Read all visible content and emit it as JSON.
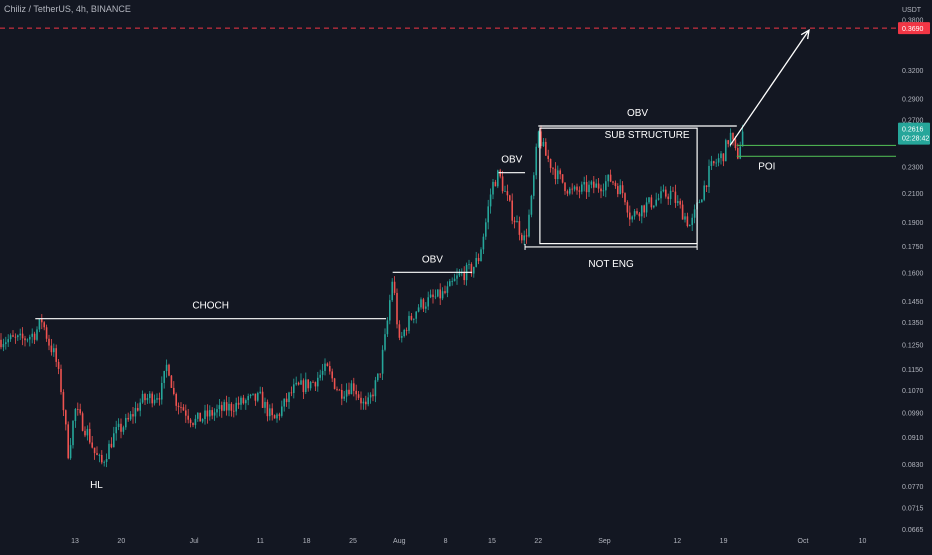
{
  "header": {
    "symbol": "Chiliz / TetherUS",
    "sep1": ", ",
    "interval": "4h",
    "sep2": ", ",
    "exchange": "BINANCE"
  },
  "price_scale": {
    "currency": "USDT",
    "current_price": "0.2616",
    "countdown": "02:28:42",
    "target_price": "0.3690"
  },
  "colors": {
    "background": "#131722",
    "up": "#26a69a",
    "down": "#ef5350",
    "drawing": "#ffffff",
    "poi": "#4caf50",
    "target_line": "#f23645",
    "axis_text": "#b2b5be"
  },
  "chart_data": {
    "type": "candlestick",
    "y_scale": "log",
    "y_ticks": [
      "0.3800",
      "0.3690",
      "0.3200",
      "0.2900",
      "0.2700",
      "0.2616",
      "0.2300",
      "0.2100",
      "0.1900",
      "0.1750",
      "0.1600",
      "0.1450",
      "0.1350",
      "0.1250",
      "0.1150",
      "0.1070",
      "0.0990",
      "0.0910",
      "0.0830",
      "0.0770",
      "0.0715",
      "0.0665"
    ],
    "x_ticks": [
      "13",
      "20",
      "Jul",
      "11",
      "18",
      "25",
      "Aug",
      "8",
      "15",
      "22",
      "Sep",
      "12",
      "19",
      "Oct",
      "10"
    ],
    "ohlc_close_path": [
      {
        "t": "Jun 05",
        "p": 0.127
      },
      {
        "t": "Jun 07",
        "p": 0.13
      },
      {
        "t": "Jun 08",
        "p": 0.136
      },
      {
        "t": "Jun 09",
        "p": 0.126
      },
      {
        "t": "Jun 10",
        "p": 0.12
      },
      {
        "t": "Jun 11",
        "p": 0.106
      },
      {
        "t": "Jun 12",
        "p": 0.086
      },
      {
        "t": "Jun 13",
        "p": 0.1
      },
      {
        "t": "Jun 15",
        "p": 0.092
      },
      {
        "t": "Jun 16",
        "p": 0.086
      },
      {
        "t": "Jun 17",
        "p": 0.083
      },
      {
        "t": "Jun 19",
        "p": 0.092
      },
      {
        "t": "Jun 21",
        "p": 0.096
      },
      {
        "t": "Jun 23",
        "p": 0.103
      },
      {
        "t": "Jun 26",
        "p": 0.106
      },
      {
        "t": "Jun 27",
        "p": 0.118
      },
      {
        "t": "Jun 28",
        "p": 0.104
      },
      {
        "t": "Jul 01",
        "p": 0.096
      },
      {
        "t": "Jul 04",
        "p": 0.099
      },
      {
        "t": "Jul 09",
        "p": 0.103
      },
      {
        "t": "Jul 11",
        "p": 0.104
      },
      {
        "t": "Jul 13",
        "p": 0.096
      },
      {
        "t": "Jul 16",
        "p": 0.107
      },
      {
        "t": "Jul 19",
        "p": 0.11
      },
      {
        "t": "Jul 21",
        "p": 0.115
      },
      {
        "t": "Jul 23",
        "p": 0.106
      },
      {
        "t": "Jul 25",
        "p": 0.109
      },
      {
        "t": "Jul 27",
        "p": 0.1
      },
      {
        "t": "Jul 29",
        "p": 0.113
      },
      {
        "t": "Jul 30",
        "p": 0.13
      },
      {
        "t": "Jul 31",
        "p": 0.158
      },
      {
        "t": "Aug 01",
        "p": 0.125
      },
      {
        "t": "Aug 02",
        "p": 0.133
      },
      {
        "t": "Aug 04",
        "p": 0.143
      },
      {
        "t": "Aug 06",
        "p": 0.146
      },
      {
        "t": "Aug 08",
        "p": 0.149
      },
      {
        "t": "Aug 10",
        "p": 0.158
      },
      {
        "t": "Aug 12",
        "p": 0.162
      },
      {
        "t": "Aug 13",
        "p": 0.168
      },
      {
        "t": "Aug 14",
        "p": 0.188
      },
      {
        "t": "Aug 15",
        "p": 0.215
      },
      {
        "t": "Aug 16",
        "p": 0.224
      },
      {
        "t": "Aug 18",
        "p": 0.196
      },
      {
        "t": "Aug 20",
        "p": 0.178
      },
      {
        "t": "Aug 21",
        "p": 0.205
      },
      {
        "t": "Aug 22",
        "p": 0.258
      },
      {
        "t": "Aug 23",
        "p": 0.24
      },
      {
        "t": "Aug 25",
        "p": 0.222
      },
      {
        "t": "Aug 27",
        "p": 0.21
      },
      {
        "t": "Aug 29",
        "p": 0.213
      },
      {
        "t": "Aug 31",
        "p": 0.215
      },
      {
        "t": "Sep 02",
        "p": 0.22
      },
      {
        "t": "Sep 04",
        "p": 0.209
      },
      {
        "t": "Sep 05",
        "p": 0.192
      },
      {
        "t": "Sep 06",
        "p": 0.198
      },
      {
        "t": "Sep 08",
        "p": 0.203
      },
      {
        "t": "Sep 10",
        "p": 0.208
      },
      {
        "t": "Sep 11",
        "p": 0.21
      },
      {
        "t": "Sep 13",
        "p": 0.195
      },
      {
        "t": "Sep 14",
        "p": 0.187
      },
      {
        "t": "Sep 15",
        "p": 0.2
      },
      {
        "t": "Sep 17",
        "p": 0.228
      },
      {
        "t": "Sep 19",
        "p": 0.24
      },
      {
        "t": "Sep 20",
        "p": 0.257
      },
      {
        "t": "Sep 21",
        "p": 0.236
      },
      {
        "t": "Sep 22",
        "p": 0.2616
      }
    ],
    "horizontal_lines": [
      {
        "label": "",
        "value": 0.369,
        "style": "dashed",
        "color": "#f23645"
      }
    ],
    "annotations": [
      {
        "label": "CHOCH",
        "kind": "level",
        "value": 0.1365,
        "from": "Jun 07",
        "to": "Jul 30"
      },
      {
        "label": "HL",
        "kind": "swing-low",
        "value": 0.083,
        "at": "Jun 17"
      },
      {
        "label": "OBV",
        "kind": "level",
        "value": 0.16,
        "from": "Jul 31",
        "to": "Aug 12"
      },
      {
        "label": "OBV",
        "kind": "level",
        "value": 0.225,
        "from": "Aug 16",
        "to": "Aug 20"
      },
      {
        "label": "OBV",
        "kind": "level",
        "value": 0.264,
        "from": "Aug 22",
        "to": "Sep 21"
      },
      {
        "label": "NOT ENG",
        "kind": "level",
        "value": 0.1745,
        "from": "Aug 20",
        "to": "Sep 15"
      },
      {
        "label": "SUB STRUCTURE",
        "kind": "box",
        "from": "Aug 23",
        "to": "Sep 15",
        "top": 0.255,
        "bottom": 0.1765
      },
      {
        "label": "POI",
        "kind": "zone",
        "top": 0.247,
        "bottom": 0.238,
        "from": "Sep 21",
        "to": "Oct 28"
      },
      {
        "label": "",
        "kind": "arrow",
        "from": "Sep 23",
        "to": "Oct 01",
        "p_from": 0.247,
        "p_to": 0.369
      }
    ]
  }
}
